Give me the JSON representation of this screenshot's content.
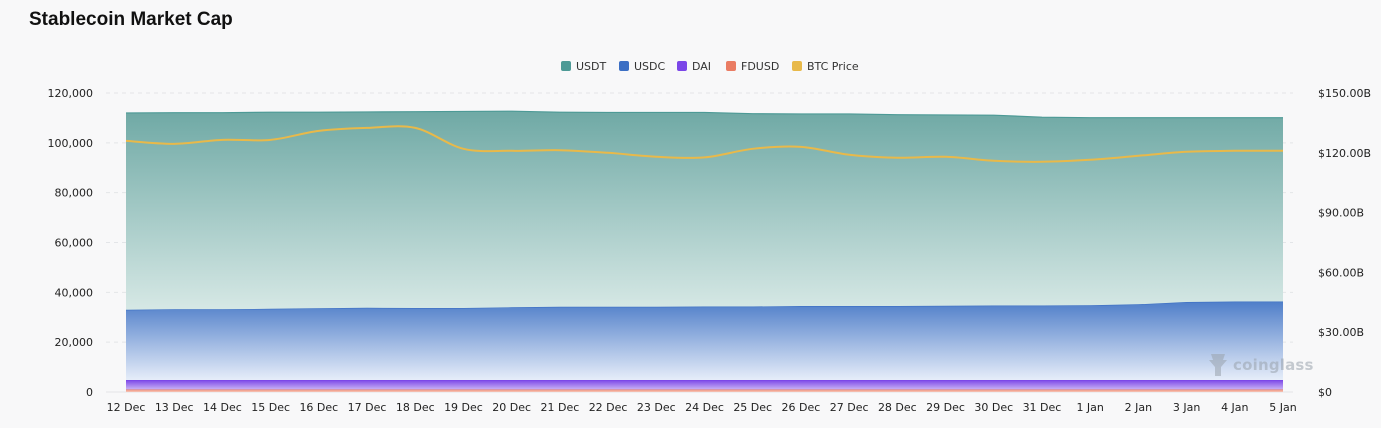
{
  "page": {
    "title": "Stablecoin Market Cap",
    "watermark": "coinglass"
  },
  "colors": {
    "USDT": "#4d9a96",
    "USDC": "#3c6fc4",
    "DAI": "#7b46e8",
    "FDUSD": "#ea7c63",
    "BTC Price": "#e8b94a",
    "grid": "#e3e5e8",
    "background": "#f8f8f9"
  },
  "chart_data": {
    "type": "area",
    "title": "Stablecoin Market Cap",
    "legend_position": "top-center",
    "grid": true,
    "stacked": true,
    "categories": [
      "12 Dec",
      "13 Dec",
      "14 Dec",
      "15 Dec",
      "16 Dec",
      "17 Dec",
      "18 Dec",
      "19 Dec",
      "20 Dec",
      "21 Dec",
      "22 Dec",
      "23 Dec",
      "24 Dec",
      "25 Dec",
      "26 Dec",
      "27 Dec",
      "28 Dec",
      "29 Dec",
      "30 Dec",
      "31 Dec",
      "1 Jan",
      "2 Jan",
      "3 Jan",
      "4 Jan",
      "5 Jan"
    ],
    "y_left": {
      "ylim": [
        0,
        120000
      ],
      "ticks": [
        "0",
        "20,000",
        "40,000",
        "60,000",
        "80,000",
        "100,000",
        "120,000"
      ]
    },
    "y_right": {
      "ylim": [
        0,
        150
      ],
      "unit": "B",
      "ticks": [
        "$0",
        "$30.00B",
        "$60.00B",
        "$90.00B",
        "$120.00B",
        "$150.00B"
      ]
    },
    "series": [
      {
        "name": "FDUSD",
        "axis": "left",
        "values": [
          1000,
          1000,
          1000,
          1000,
          1000,
          1000,
          1000,
          1000,
          1000,
          1000,
          1000,
          1000,
          1000,
          1000,
          1000,
          1000,
          1000,
          1000,
          1000,
          1000,
          1000,
          1000,
          1000,
          1000,
          1000
        ]
      },
      {
        "name": "DAI",
        "axis": "left",
        "values": [
          3800,
          3800,
          3800,
          3800,
          3800,
          3800,
          3800,
          3800,
          3800,
          3800,
          3800,
          3800,
          3800,
          3800,
          3800,
          3800,
          3800,
          3800,
          3800,
          3800,
          3800,
          3800,
          3800,
          3800,
          3800
        ]
      },
      {
        "name": "USDC",
        "axis": "left",
        "values": [
          28200,
          28400,
          28400,
          28600,
          28800,
          29000,
          28900,
          28900,
          29200,
          29400,
          29400,
          29400,
          29500,
          29500,
          29700,
          29700,
          29700,
          29800,
          29900,
          29900,
          30000,
          30400,
          31300,
          31500,
          31500
        ]
      },
      {
        "name": "USDT",
        "axis": "left",
        "values": [
          79000,
          78900,
          78900,
          78900,
          78700,
          78600,
          78800,
          78900,
          78700,
          78100,
          78000,
          78000,
          77900,
          77400,
          77100,
          77100,
          76800,
          76600,
          76400,
          75600,
          75300,
          74900,
          74000,
          73800,
          73800
        ]
      },
      {
        "name": "BTC Price",
        "axis": "right",
        "type": "line",
        "values": [
          126,
          124.5,
          126.5,
          126.5,
          131,
          132.5,
          132.5,
          122,
          121,
          121.3,
          120,
          118,
          117.7,
          122,
          123,
          119,
          117.5,
          118,
          116,
          115.5,
          116.5,
          118.5,
          120.5,
          121,
          121
        ]
      }
    ]
  }
}
